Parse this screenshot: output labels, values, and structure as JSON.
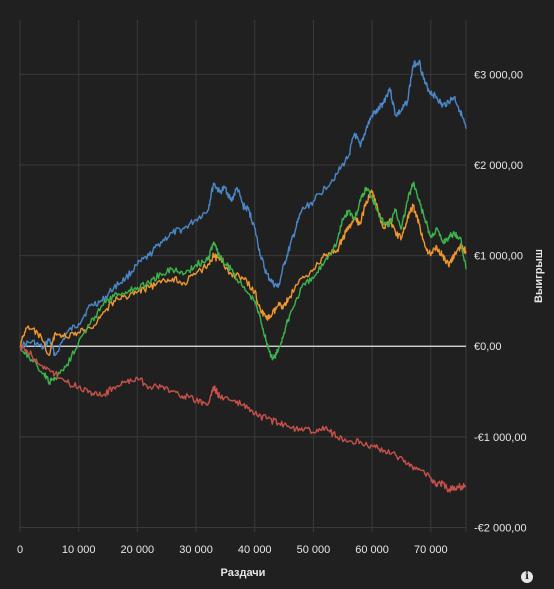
{
  "chart_data": {
    "type": "line",
    "title": "",
    "xlabel": "Раздачи",
    "ylabel": "Выигрыш",
    "xlim": [
      0,
      76000
    ],
    "ylim": [
      -2050,
      3600
    ],
    "x_ticks": [
      0,
      10000,
      20000,
      30000,
      40000,
      50000,
      60000,
      70000
    ],
    "x_tick_labels": [
      "0",
      "10 000",
      "20 000",
      "30 000",
      "40 000",
      "50 000",
      "60 000",
      "70 000"
    ],
    "y_ticks": [
      -2000,
      -1000,
      0,
      1000,
      2000,
      3000
    ],
    "y_tick_labels": [
      "-€2 000,00",
      "-€1 000,00",
      "€0,00",
      "€1 000,00",
      "€2 000,00",
      "€3 000,00"
    ],
    "grid": true,
    "zero_line": true,
    "y_axis_side": "right",
    "series": [
      {
        "color": "#4a87c9",
        "x": [
          0,
          2000,
          4000,
          5000,
          6000,
          8000,
          10000,
          12000,
          14000,
          16000,
          18000,
          20000,
          22000,
          24000,
          26000,
          28000,
          30000,
          32000,
          33000,
          34000,
          35000,
          36000,
          37000,
          38000,
          39000,
          40000,
          41000,
          42000,
          43000,
          44000,
          45000,
          46000,
          47000,
          48000,
          50000,
          52000,
          54000,
          56000,
          57000,
          58000,
          59000,
          60000,
          61000,
          62000,
          63000,
          64000,
          65000,
          66000,
          67000,
          68000,
          69000,
          70000,
          71000,
          72000,
          73000,
          74000,
          75000,
          76000
        ],
        "values": [
          0,
          50,
          -20,
          80,
          -100,
          150,
          250,
          450,
          500,
          650,
          750,
          900,
          1000,
          1150,
          1250,
          1300,
          1400,
          1500,
          1800,
          1700,
          1750,
          1600,
          1750,
          1550,
          1500,
          1300,
          1000,
          800,
          700,
          650,
          900,
          1100,
          1300,
          1500,
          1600,
          1750,
          1900,
          2100,
          2350,
          2200,
          2400,
          2550,
          2600,
          2700,
          2850,
          2550,
          2600,
          2700,
          3100,
          3150,
          2900,
          2800,
          2750,
          2650,
          2700,
          2750,
          2600,
          2400
        ]
      },
      {
        "color": "#f0962f",
        "x": [
          0,
          1000,
          3000,
          5000,
          6000,
          8000,
          10000,
          12000,
          14000,
          16000,
          18000,
          20000,
          22000,
          24000,
          26000,
          28000,
          30000,
          32000,
          33000,
          34000,
          36000,
          38000,
          40000,
          41000,
          42000,
          43000,
          44000,
          45000,
          46000,
          48000,
          50000,
          52000,
          54000,
          55000,
          56000,
          57000,
          58000,
          59000,
          60000,
          61000,
          62000,
          63000,
          64000,
          65000,
          66000,
          67000,
          68000,
          69000,
          70000,
          71000,
          72000,
          73000,
          74000,
          75000,
          76000
        ],
        "values": [
          0,
          200,
          150,
          -100,
          150,
          100,
          150,
          200,
          350,
          500,
          550,
          600,
          650,
          700,
          750,
          700,
          800,
          900,
          1000,
          950,
          800,
          750,
          600,
          400,
          300,
          350,
          450,
          450,
          550,
          750,
          850,
          1000,
          1050,
          1200,
          1300,
          1400,
          1350,
          1600,
          1700,
          1500,
          1300,
          1400,
          1250,
          1200,
          1400,
          1550,
          1350,
          1100,
          1000,
          1100,
          1000,
          900,
          1000,
          1100,
          1050
        ]
      },
      {
        "color": "#3cb44b",
        "x": [
          0,
          2000,
          4000,
          5000,
          6000,
          8000,
          10000,
          12000,
          14000,
          16000,
          18000,
          20000,
          22000,
          24000,
          26000,
          28000,
          30000,
          32000,
          33000,
          34000,
          35000,
          36000,
          38000,
          40000,
          41000,
          42000,
          43000,
          44000,
          45000,
          46000,
          48000,
          50000,
          52000,
          54000,
          55000,
          56000,
          57000,
          58000,
          59000,
          60000,
          61000,
          62000,
          63000,
          64000,
          65000,
          66000,
          67000,
          68000,
          69000,
          70000,
          71000,
          72000,
          73000,
          74000,
          75000,
          76000
        ],
        "values": [
          0,
          -150,
          -300,
          -400,
          -350,
          -200,
          50,
          250,
          450,
          550,
          600,
          650,
          700,
          800,
          850,
          800,
          900,
          950,
          1150,
          1000,
          900,
          850,
          650,
          500,
          300,
          50,
          -150,
          -50,
          150,
          350,
          650,
          750,
          950,
          1150,
          1400,
          1500,
          1400,
          1600,
          1750,
          1650,
          1500,
          1350,
          1350,
          1500,
          1300,
          1600,
          1800,
          1600,
          1400,
          1200,
          1300,
          1150,
          1200,
          1250,
          1200,
          850
        ]
      },
      {
        "color": "#c8504a",
        "x": [
          0,
          2000,
          4000,
          6000,
          8000,
          10000,
          12000,
          14000,
          16000,
          18000,
          20000,
          22000,
          24000,
          26000,
          28000,
          30000,
          32000,
          33000,
          34000,
          36000,
          38000,
          40000,
          42000,
          44000,
          46000,
          48000,
          50000,
          52000,
          54000,
          56000,
          58000,
          60000,
          62000,
          64000,
          66000,
          68000,
          70000,
          71000,
          72000,
          73000,
          74000,
          75000,
          76000
        ],
        "values": [
          0,
          -100,
          -250,
          -300,
          -400,
          -450,
          -500,
          -550,
          -450,
          -400,
          -350,
          -450,
          -450,
          -500,
          -550,
          -600,
          -650,
          -450,
          -550,
          -600,
          -650,
          -750,
          -800,
          -850,
          -900,
          -900,
          -950,
          -900,
          -1000,
          -1050,
          -1050,
          -1100,
          -1150,
          -1200,
          -1300,
          -1350,
          -1450,
          -1550,
          -1500,
          -1600,
          -1550,
          -1550,
          -1550
        ]
      }
    ]
  },
  "info_icon": "info-icon",
  "info_glyph": "i"
}
